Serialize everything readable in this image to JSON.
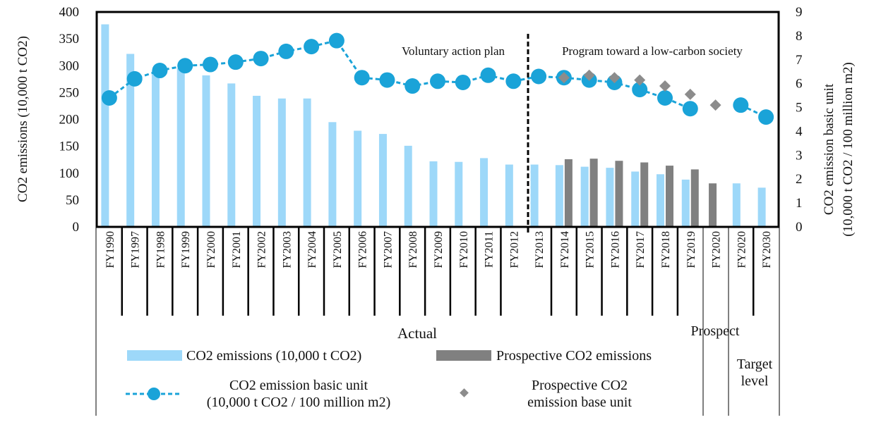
{
  "chart_data": {
    "type": "bar",
    "categories": [
      "FY1990",
      "FY1997",
      "FY1998",
      "FY1999",
      "FY2000",
      "FY2001",
      "FY2002",
      "FY2003",
      "FY2004",
      "FY2005",
      "FY2006",
      "FY2007",
      "FY2008",
      "FY2009",
      "FY2010",
      "FY2011",
      "FY2012",
      "FY2013",
      "FY2014",
      "FY2015",
      "FY2016",
      "FY2017",
      "FY2018",
      "FY2019",
      "FY2020",
      "FY2020",
      "FY2030"
    ],
    "y_left": {
      "label": "CO2 emissions (10,000 t CO2)",
      "min": 0,
      "max": 400,
      "ticks": [
        "0",
        "50",
        "100",
        "150",
        "200",
        "250",
        "300",
        "350",
        "400"
      ]
    },
    "y_right": {
      "label_line1": "CO2 emission basic unit",
      "label_line2": "(10,000 t CO2 / 100 million m2)",
      "min": 0,
      "max": 9,
      "ticks": [
        "0",
        "1",
        "2",
        "3",
        "4",
        "5",
        "6",
        "7",
        "8",
        "9"
      ]
    },
    "series": [
      {
        "name": "CO2 emissions (10,000 t CO2)",
        "kind": "bar",
        "axis": "left",
        "color": "#9dd8f9",
        "values": [
          377,
          322,
          291,
          295,
          282,
          267,
          244,
          239,
          239,
          195,
          179,
          173,
          151,
          122,
          121,
          128,
          116,
          116,
          115,
          112,
          110,
          103,
          98,
          88,
          null,
          81,
          73
        ]
      },
      {
        "name": "Prospective CO2 emissions",
        "kind": "bar",
        "axis": "left",
        "color": "#808080",
        "values": [
          null,
          null,
          null,
          null,
          null,
          null,
          null,
          null,
          null,
          null,
          null,
          null,
          null,
          null,
          null,
          null,
          null,
          null,
          126,
          127,
          123,
          120,
          114,
          107,
          81,
          null,
          null
        ]
      },
      {
        "name": "CO2 emission basic unit (10,000 t CO2 / 100 million m2)",
        "kind": "line",
        "axis": "right",
        "color": "#1aa3d8",
        "values": [
          5.4,
          6.2,
          6.55,
          6.75,
          6.8,
          6.9,
          7.05,
          7.35,
          7.55,
          7.8,
          6.25,
          6.15,
          5.9,
          6.1,
          6.05,
          6.35,
          6.1,
          6.3,
          6.25,
          6.15,
          6.05,
          5.75,
          5.4,
          4.95,
          null,
          5.1,
          4.6
        ]
      },
      {
        "name": "Prospective CO2 emission base unit",
        "kind": "scatter",
        "axis": "right",
        "color": "#8c8c8c",
        "values": [
          null,
          null,
          null,
          null,
          null,
          null,
          null,
          null,
          null,
          null,
          null,
          null,
          null,
          null,
          null,
          null,
          null,
          null,
          6.25,
          6.35,
          6.25,
          6.15,
          5.9,
          5.55,
          5.1,
          null,
          null
        ]
      }
    ],
    "annotations": {
      "left_period": "Voluntary action plan",
      "right_period": "Program toward a low-carbon society"
    },
    "groups": {
      "actual": "Actual",
      "prospect": "Prospect",
      "target_line1": "Target",
      "target_line2": "level"
    },
    "legend": {
      "placement": "bottom",
      "bar1": "CO2 emissions (10,000 t CO2)",
      "bar2": "Prospective CO2 emissions",
      "line1": "CO2 emission basic unit",
      "line2": "(10,000 t CO2 / 100 million m2)",
      "marker1": "Prospective CO2",
      "marker2": "emission base unit"
    }
  }
}
